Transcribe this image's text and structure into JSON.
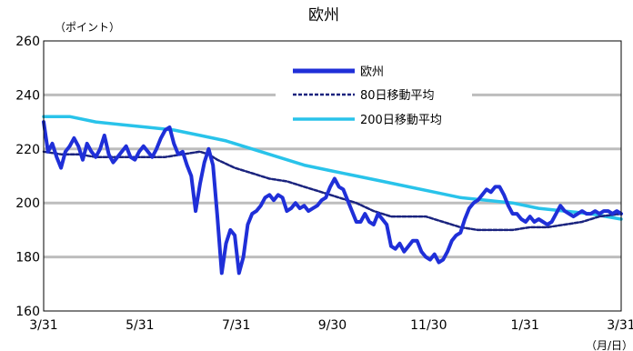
{
  "chart_data": {
    "type": "line",
    "title": "欧州",
    "ylabel": "（ポイント）",
    "xlabel": "（月/日）",
    "ylim": [
      160,
      260
    ],
    "y_ticks": [
      "160",
      "180",
      "200",
      "220",
      "240",
      "260"
    ],
    "x_ticks": [
      "3/31",
      "5/31",
      "7/31",
      "9/30",
      "11/30",
      "1/31",
      "3/31"
    ],
    "grid": true,
    "legend_position": "top-right",
    "series": [
      {
        "name": "欧州",
        "color": "#1f2fd8",
        "style": "solid-thick",
        "points": [
          [
            0,
            230
          ],
          [
            1,
            219
          ],
          [
            2,
            222
          ],
          [
            3,
            217
          ],
          [
            4,
            213
          ],
          [
            5,
            219
          ],
          [
            6,
            221
          ],
          [
            7,
            224
          ],
          [
            8,
            221
          ],
          [
            9,
            216
          ],
          [
            10,
            222
          ],
          [
            11,
            219
          ],
          [
            12,
            217
          ],
          [
            13,
            220
          ],
          [
            14,
            225
          ],
          [
            15,
            218
          ],
          [
            16,
            215
          ],
          [
            17,
            217
          ],
          [
            18,
            219
          ],
          [
            19,
            221
          ],
          [
            20,
            217
          ],
          [
            21,
            216
          ],
          [
            22,
            219
          ],
          [
            23,
            221
          ],
          [
            24,
            219
          ],
          [
            25,
            217
          ],
          [
            26,
            220
          ],
          [
            27,
            224
          ],
          [
            28,
            227
          ],
          [
            29,
            228
          ],
          [
            30,
            222
          ],
          [
            31,
            218
          ],
          [
            32,
            219
          ],
          [
            33,
            214
          ],
          [
            34,
            210
          ],
          [
            35,
            197
          ],
          [
            36,
            207
          ],
          [
            37,
            215
          ],
          [
            38,
            220
          ],
          [
            39,
            214
          ],
          [
            40,
            195
          ],
          [
            41,
            174
          ],
          [
            42,
            185
          ],
          [
            43,
            190
          ],
          [
            44,
            188
          ],
          [
            45,
            174
          ],
          [
            46,
            180
          ],
          [
            47,
            192
          ],
          [
            48,
            196
          ],
          [
            49,
            197
          ],
          [
            50,
            199
          ],
          [
            51,
            202
          ],
          [
            52,
            203
          ],
          [
            53,
            201
          ],
          [
            54,
            203
          ],
          [
            55,
            202
          ],
          [
            56,
            197
          ],
          [
            57,
            198
          ],
          [
            58,
            200
          ],
          [
            59,
            198
          ],
          [
            60,
            199
          ],
          [
            61,
            197
          ],
          [
            62,
            198
          ],
          [
            63,
            199
          ],
          [
            64,
            201
          ],
          [
            65,
            202
          ],
          [
            66,
            206
          ],
          [
            67,
            209
          ],
          [
            68,
            206
          ],
          [
            69,
            205
          ],
          [
            70,
            201
          ],
          [
            71,
            197
          ],
          [
            72,
            193
          ],
          [
            73,
            193
          ],
          [
            74,
            196
          ],
          [
            75,
            193
          ],
          [
            76,
            192
          ],
          [
            77,
            196
          ],
          [
            78,
            194
          ],
          [
            79,
            192
          ],
          [
            80,
            184
          ],
          [
            81,
            183
          ],
          [
            82,
            185
          ],
          [
            83,
            182
          ],
          [
            84,
            184
          ],
          [
            85,
            186
          ],
          [
            86,
            186
          ],
          [
            87,
            182
          ],
          [
            88,
            180
          ],
          [
            89,
            179
          ],
          [
            90,
            181
          ],
          [
            91,
            178
          ],
          [
            92,
            179
          ],
          [
            93,
            182
          ],
          [
            94,
            186
          ],
          [
            95,
            188
          ],
          [
            96,
            189
          ],
          [
            97,
            194
          ],
          [
            98,
            198
          ],
          [
            99,
            200
          ],
          [
            100,
            201
          ],
          [
            101,
            203
          ],
          [
            102,
            205
          ],
          [
            103,
            204
          ],
          [
            104,
            206
          ],
          [
            105,
            206
          ],
          [
            106,
            203
          ],
          [
            107,
            199
          ],
          [
            108,
            196
          ],
          [
            109,
            196
          ],
          [
            110,
            194
          ],
          [
            111,
            193
          ],
          [
            112,
            195
          ],
          [
            113,
            193
          ],
          [
            114,
            194
          ],
          [
            115,
            193
          ],
          [
            116,
            192
          ],
          [
            117,
            193
          ],
          [
            118,
            196
          ],
          [
            119,
            199
          ],
          [
            120,
            197
          ],
          [
            121,
            196
          ],
          [
            122,
            195
          ],
          [
            123,
            196
          ],
          [
            124,
            197
          ],
          [
            125,
            196
          ],
          [
            126,
            196
          ],
          [
            127,
            197
          ],
          [
            128,
            196
          ],
          [
            129,
            197
          ],
          [
            130,
            197
          ],
          [
            131,
            196
          ],
          [
            132,
            197
          ],
          [
            133,
            196
          ]
        ]
      },
      {
        "name": "80日移動平均",
        "color": "#1a237e",
        "style": "dashed",
        "points": [
          [
            0,
            219
          ],
          [
            4,
            218
          ],
          [
            8,
            218
          ],
          [
            12,
            217
          ],
          [
            16,
            217
          ],
          [
            20,
            217
          ],
          [
            24,
            217
          ],
          [
            28,
            217
          ],
          [
            32,
            218
          ],
          [
            36,
            219
          ],
          [
            38,
            218
          ],
          [
            40,
            216
          ],
          [
            44,
            213
          ],
          [
            48,
            211
          ],
          [
            52,
            209
          ],
          [
            56,
            208
          ],
          [
            60,
            206
          ],
          [
            64,
            204
          ],
          [
            68,
            202
          ],
          [
            72,
            200
          ],
          [
            76,
            197
          ],
          [
            80,
            195
          ],
          [
            84,
            195
          ],
          [
            88,
            195
          ],
          [
            92,
            193
          ],
          [
            96,
            191
          ],
          [
            100,
            190
          ],
          [
            104,
            190
          ],
          [
            108,
            190
          ],
          [
            112,
            191
          ],
          [
            116,
            191
          ],
          [
            120,
            192
          ],
          [
            124,
            193
          ],
          [
            128,
            195
          ],
          [
            133,
            196
          ]
        ]
      },
      {
        "name": "200日移動平均",
        "color": "#29c3ea",
        "style": "solid-thick",
        "points": [
          [
            0,
            232
          ],
          [
            6,
            232
          ],
          [
            12,
            230
          ],
          [
            18,
            229
          ],
          [
            24,
            228
          ],
          [
            30,
            227
          ],
          [
            36,
            225
          ],
          [
            42,
            223
          ],
          [
            48,
            220
          ],
          [
            54,
            217
          ],
          [
            60,
            214
          ],
          [
            66,
            212
          ],
          [
            72,
            210
          ],
          [
            78,
            208
          ],
          [
            84,
            206
          ],
          [
            90,
            204
          ],
          [
            96,
            202
          ],
          [
            102,
            201
          ],
          [
            108,
            200
          ],
          [
            114,
            198
          ],
          [
            120,
            197
          ],
          [
            126,
            196
          ],
          [
            133,
            194
          ]
        ]
      }
    ]
  }
}
